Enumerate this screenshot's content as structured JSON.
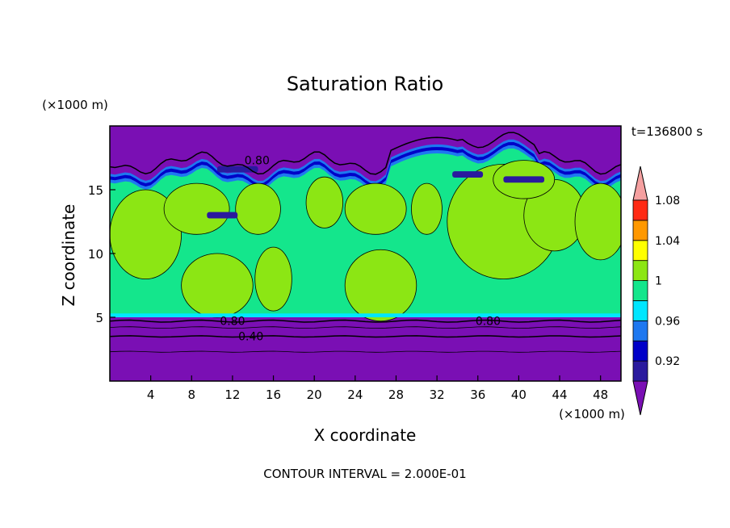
{
  "chart_data": {
    "type": "heatmap",
    "title": "Saturation Ratio",
    "xlabel": "X coordinate",
    "ylabel": "Z coordinate",
    "x_units": "(×1000 m)",
    "y_units": "(×1000 m)",
    "time_label": "t=136800 s",
    "footer": "CONTOUR INTERVAL = 2.000E-01",
    "xlim": [
      0,
      50
    ],
    "ylim": [
      0,
      20
    ],
    "x_ticks": [
      4,
      8,
      12,
      16,
      20,
      24,
      28,
      32,
      36,
      40,
      44,
      48
    ],
    "y_ticks": [
      5,
      10,
      15
    ],
    "colorbar": {
      "tick_labels": [
        "1.08",
        "1.04",
        "1",
        "0.96",
        "0.92"
      ],
      "levels": [
        0.9,
        0.92,
        0.94,
        0.96,
        0.98,
        1.0,
        1.02,
        1.04,
        1.06,
        1.08,
        1.1
      ],
      "colors": [
        "#7a0fb4",
        "#2a1a9e",
        "#0000c8",
        "#1e78f0",
        "#00e6ff",
        "#14e68c",
        "#8ce614",
        "#ffff00",
        "#ff9800",
        "#ff2a14",
        "#f5a0a0"
      ]
    },
    "contour_labels": [
      {
        "text": "0.80",
        "x": 14.4,
        "z": 17.3
      },
      {
        "text": "0.80",
        "x": 12.0,
        "z": 4.7
      },
      {
        "text": "0.40",
        "x": 13.8,
        "z": 3.5
      },
      {
        "text": "0.80",
        "x": 37.0,
        "z": 4.7
      }
    ],
    "regions": {
      "upper_dry_layer": {
        "z_min": 16.2,
        "z_max": 20,
        "value_below": 0.9
      },
      "cloud_layer": {
        "z_min": 5,
        "z_max": 16.2,
        "dominant_range": [
          0.98,
          1.02
        ]
      },
      "lower_dry_layer": {
        "z_min": 0,
        "z_max": 5,
        "value_below": 0.9
      }
    }
  }
}
